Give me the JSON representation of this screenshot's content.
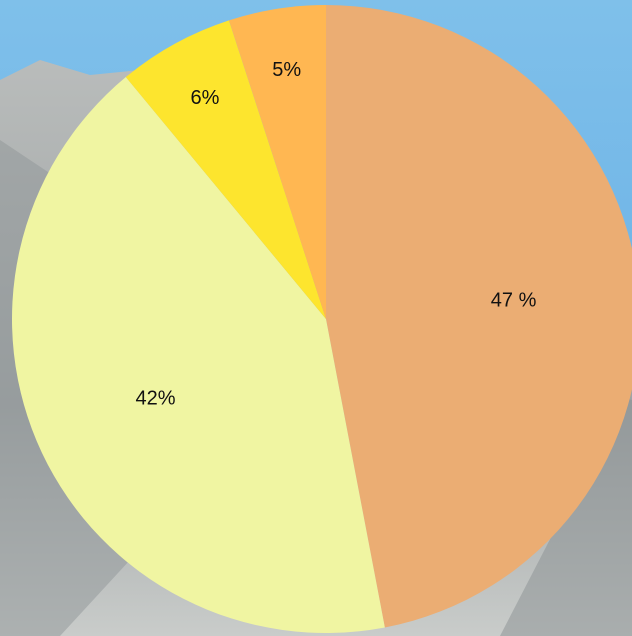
{
  "chart_data": {
    "type": "pie",
    "values": [
      47,
      42,
      6,
      5
    ],
    "value_labels": [
      "47 %",
      "42%",
      "6%",
      "5%"
    ],
    "colors": [
      "#ebad73",
      "#f0f5a2",
      "#fde52e",
      "#ffb752"
    ]
  }
}
